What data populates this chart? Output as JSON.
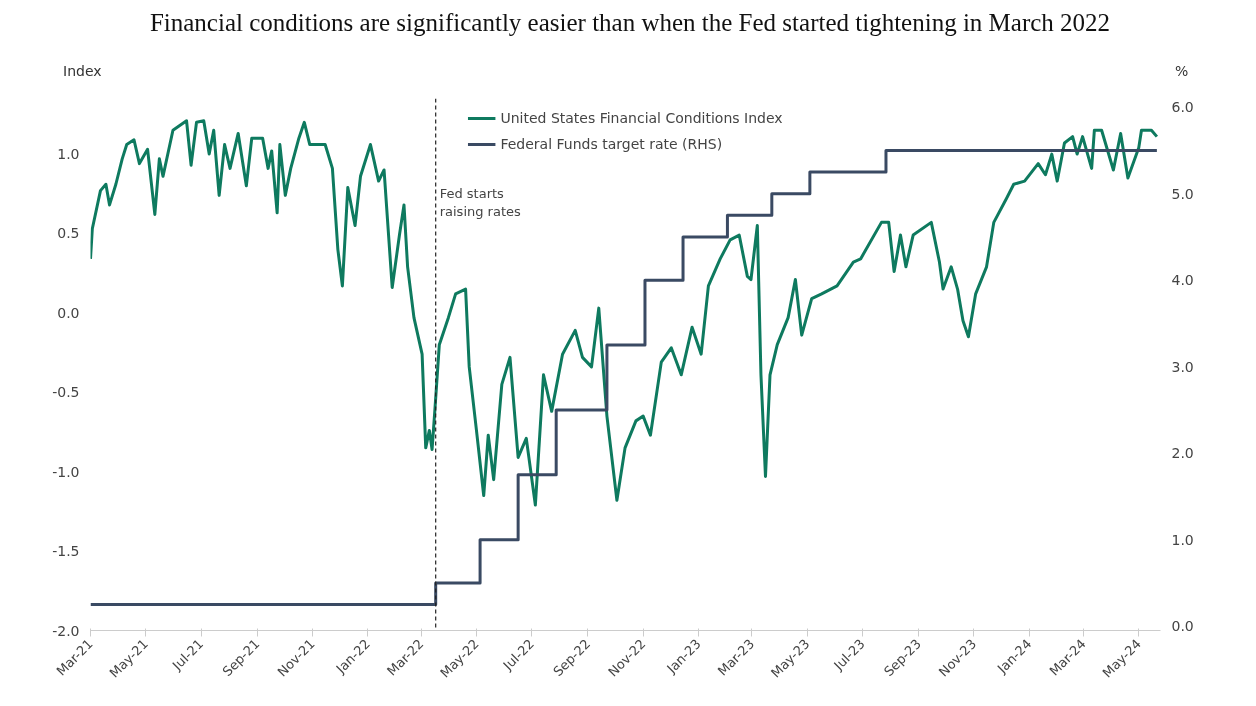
{
  "chart_data": {
    "type": "line",
    "title": "Financial conditions are significantly easier than when the Fed started tightening in March 2022",
    "ylabel": "Index",
    "y2label": "%",
    "xlim": [
      "2021-03-01",
      "2024-05-25"
    ],
    "xticks": [
      {
        "value": "2021-03-01",
        "label": "Mar-21"
      },
      {
        "value": "2021-05-01",
        "label": "May-21"
      },
      {
        "value": "2021-07-01",
        "label": "Jul-21"
      },
      {
        "value": "2021-09-01",
        "label": "Sep-21"
      },
      {
        "value": "2021-11-01",
        "label": "Nov-21"
      },
      {
        "value": "2022-01-01",
        "label": "Jan-22"
      },
      {
        "value": "2022-03-01",
        "label": "Mar-22"
      },
      {
        "value": "2022-05-01",
        "label": "May-22"
      },
      {
        "value": "2022-07-01",
        "label": "Jul-22"
      },
      {
        "value": "2022-09-01",
        "label": "Sep-22"
      },
      {
        "value": "2022-11-01",
        "label": "Nov-22"
      },
      {
        "value": "2023-01-01",
        "label": "Jan-23"
      },
      {
        "value": "2023-03-01",
        "label": "Mar-23"
      },
      {
        "value": "2023-05-01",
        "label": "May-23"
      },
      {
        "value": "2023-07-01",
        "label": "Jul-23"
      },
      {
        "value": "2023-09-01",
        "label": "Sep-23"
      },
      {
        "value": "2023-11-01",
        "label": "Nov-23"
      },
      {
        "value": "2024-01-01",
        "label": "Jan-24"
      },
      {
        "value": "2024-03-01",
        "label": "Mar-24"
      },
      {
        "value": "2024-05-01",
        "label": "May-24"
      }
    ],
    "ylim": [
      -2.0,
      1.35
    ],
    "yticks": [
      {
        "value": -2,
        "label": "-2.0"
      },
      {
        "value": -1.5,
        "label": "-1.5"
      },
      {
        "value": -1,
        "label": "-1.0"
      },
      {
        "value": -0.5,
        "label": "-0.5"
      },
      {
        "value": 0,
        "label": "0.0"
      },
      {
        "value": 0.5,
        "label": "0.5"
      },
      {
        "value": 1,
        "label": "1.0"
      }
    ],
    "y2lim": [
      -0.05,
      6.1
    ],
    "y2ticks": [
      {
        "value": 0,
        "label": "0.0"
      },
      {
        "value": 1,
        "label": "1.0"
      },
      {
        "value": 2,
        "label": "2.0"
      },
      {
        "value": 3,
        "label": "3.0"
      },
      {
        "value": 4,
        "label": "4.0"
      },
      {
        "value": 5,
        "label": "5.0"
      },
      {
        "value": 6,
        "label": "6.0"
      }
    ],
    "legend": "top",
    "grid": false,
    "series": [
      {
        "name": "United States Financial Conditions Index",
        "color": "#0e7a5f",
        "x": [
          "2021-03-01",
          "2021-03-03",
          "2021-03-12",
          "2021-03-18",
          "2021-03-22",
          "2021-03-29",
          "2021-04-05",
          "2021-04-10",
          "2021-04-18",
          "2021-04-24",
          "2021-05-03",
          "2021-05-11",
          "2021-05-16",
          "2021-05-20",
          "2021-05-31",
          "2021-06-15",
          "2021-06-20",
          "2021-06-26",
          "2021-07-04",
          "2021-07-10",
          "2021-07-15",
          "2021-07-21",
          "2021-07-27",
          "2021-08-02",
          "2021-08-11",
          "2021-08-20",
          "2021-08-26",
          "2021-09-07",
          "2021-09-13",
          "2021-09-17",
          "2021-09-23",
          "2021-09-26",
          "2021-10-02",
          "2021-10-08",
          "2021-10-17",
          "2021-10-23",
          "2021-10-29",
          "2021-11-08",
          "2021-11-15",
          "2021-11-23",
          "2021-11-29",
          "2021-12-04",
          "2021-12-10",
          "2021-12-18",
          "2021-12-24",
          "2022-01-04",
          "2022-01-13",
          "2022-01-19",
          "2022-01-28",
          "2022-02-05",
          "2022-02-10",
          "2022-02-14",
          "2022-02-21",
          "2022-03-02",
          "2022-03-06",
          "2022-03-10",
          "2022-03-13",
          "2022-03-16",
          "2022-03-21",
          "2022-03-31",
          "2022-04-08",
          "2022-04-19",
          "2022-04-23",
          "2022-05-01",
          "2022-05-09",
          "2022-05-14",
          "2022-05-20",
          "2022-05-29",
          "2022-06-07",
          "2022-06-16",
          "2022-06-25",
          "2022-07-05",
          "2022-07-14",
          "2022-07-23",
          "2022-08-04",
          "2022-08-18",
          "2022-08-26",
          "2022-09-05",
          "2022-09-13",
          "2022-09-22",
          "2022-10-03",
          "2022-10-12",
          "2022-10-24",
          "2022-11-01",
          "2022-11-09",
          "2022-11-21",
          "2022-12-02",
          "2022-12-13",
          "2022-12-25",
          "2023-01-04",
          "2023-01-12",
          "2023-01-25",
          "2023-02-05",
          "2023-02-15",
          "2023-02-24",
          "2023-02-28",
          "2023-03-07",
          "2023-03-11",
          "2023-03-16",
          "2023-03-21",
          "2023-03-29",
          "2023-04-10",
          "2023-04-18",
          "2023-04-25",
          "2023-05-06",
          "2023-05-17",
          "2023-06-03",
          "2023-06-21",
          "2023-06-29",
          "2023-07-22",
          "2023-07-30",
          "2023-08-05",
          "2023-08-12",
          "2023-08-18",
          "2023-08-26",
          "2023-09-15",
          "2023-09-24",
          "2023-09-28",
          "2023-10-07",
          "2023-10-14",
          "2023-10-20",
          "2023-10-26",
          "2023-11-03",
          "2023-11-15",
          "2023-11-23",
          "2023-12-07",
          "2023-12-15",
          "2023-12-27",
          "2024-01-11",
          "2024-01-19",
          "2024-01-26",
          "2024-02-01",
          "2024-02-09",
          "2024-02-18",
          "2024-02-23",
          "2024-02-29",
          "2024-03-10",
          "2024-03-13",
          "2024-03-21",
          "2024-04-03",
          "2024-04-11",
          "2024-04-19",
          "2024-05-01",
          "2024-05-04",
          "2024-05-10",
          "2024-05-15",
          "2024-05-21"
        ],
        "values": [
          0.34,
          0.53,
          0.77,
          0.81,
          0.68,
          0.81,
          0.97,
          1.06,
          1.09,
          0.94,
          1.03,
          0.62,
          0.97,
          0.86,
          1.15,
          1.21,
          0.93,
          1.2,
          1.21,
          1.0,
          1.15,
          0.74,
          1.06,
          0.91,
          1.13,
          0.8,
          1.1,
          1.1,
          0.91,
          1.02,
          0.63,
          1.06,
          0.74,
          0.91,
          1.1,
          1.2,
          1.06,
          1.06,
          1.06,
          0.91,
          0.4,
          0.17,
          0.79,
          0.55,
          0.86,
          1.06,
          0.83,
          0.9,
          0.16,
          0.49,
          0.68,
          0.29,
          -0.03,
          -0.26,
          -0.85,
          -0.74,
          -0.86,
          -0.62,
          -0.2,
          -0.03,
          0.12,
          0.15,
          -0.34,
          -0.74,
          -1.15,
          -0.77,
          -1.05,
          -0.45,
          -0.28,
          -0.91,
          -0.79,
          -1.21,
          -0.39,
          -0.62,
          -0.26,
          -0.11,
          -0.28,
          -0.34,
          0.03,
          -0.65,
          -1.18,
          -0.85,
          -0.68,
          -0.65,
          -0.77,
          -0.31,
          -0.22,
          -0.39,
          -0.09,
          -0.26,
          0.17,
          0.34,
          0.46,
          0.49,
          0.23,
          0.21,
          0.55,
          -0.39,
          -1.03,
          -0.39,
          -0.2,
          -0.03,
          0.21,
          -0.14,
          0.09,
          0.12,
          0.17,
          0.32,
          0.34,
          0.57,
          0.57,
          0.26,
          0.49,
          0.29,
          0.49,
          0.57,
          0.32,
          0.15,
          0.29,
          0.15,
          -0.05,
          -0.15,
          0.12,
          0.29,
          0.57,
          0.72,
          0.81,
          0.83,
          0.94,
          0.87,
          1.0,
          0.83,
          1.07,
          1.11,
          1.0,
          1.11,
          0.91,
          1.15,
          1.15,
          0.9,
          1.13,
          0.85,
          1.04,
          1.15,
          1.15,
          1.15,
          1.11
        ]
      },
      {
        "name": "Federal Funds target rate (RHS)",
        "color": "#3a4a63",
        "type": "step",
        "axis": "y2",
        "x": [
          "2021-03-01",
          "2022-03-17",
          "2022-05-05",
          "2022-06-16",
          "2022-07-28",
          "2022-09-22",
          "2022-11-03",
          "2022-12-15",
          "2023-02-02",
          "2023-03-23",
          "2023-05-04",
          "2023-07-27",
          "2024-05-21"
        ],
        "values": [
          0.25,
          0.5,
          1.0,
          1.75,
          2.5,
          3.25,
          4.0,
          4.5,
          4.75,
          5.0,
          5.25,
          5.5,
          5.5
        ]
      }
    ],
    "ref_lines": [
      {
        "axis": "x",
        "value": "2022-03-17",
        "label": "Fed starts\nraising rates",
        "color": "#222222",
        "line_style": "dashed"
      }
    ]
  }
}
